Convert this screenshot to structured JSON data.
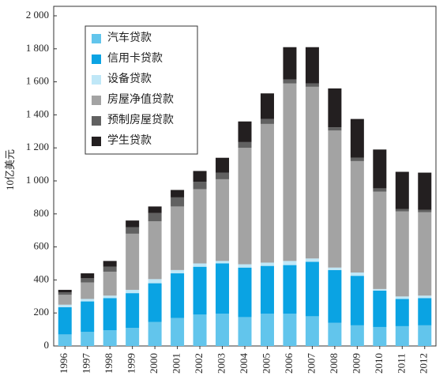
{
  "chart_data": {
    "type": "stacked-bar",
    "y_label": "10亿美元",
    "categories": [
      "1996",
      "1997",
      "1998",
      "1999",
      "2000",
      "2001",
      "2002",
      "2003",
      "2004",
      "2005",
      "2006",
      "2007",
      "2008",
      "2009",
      "2010",
      "2011",
      "2012"
    ],
    "series": [
      {
        "name": "汽车贷款",
        "color": "#62c5ec",
        "values": [
          70,
          85,
          95,
          110,
          145,
          170,
          190,
          195,
          175,
          195,
          195,
          180,
          140,
          125,
          115,
          120,
          125
        ]
      },
      {
        "name": "信用卡贷款",
        "color": "#0aa3e3",
        "values": [
          165,
          185,
          195,
          210,
          235,
          270,
          290,
          305,
          300,
          290,
          295,
          330,
          320,
          300,
          220,
          165,
          165
        ]
      },
      {
        "name": "设备贷款",
        "color": "#bfe7f7",
        "values": [
          15,
          15,
          15,
          20,
          25,
          20,
          20,
          15,
          20,
          20,
          25,
          20,
          15,
          20,
          10,
          15,
          15
        ]
      },
      {
        "name": "房屋净值贷款",
        "color": "#a3a3a3",
        "values": [
          60,
          100,
          145,
          340,
          350,
          385,
          450,
          495,
          705,
          840,
          1075,
          1040,
          830,
          675,
          590,
          515,
          505
        ]
      },
      {
        "name": "预制房屋贷款",
        "color": "#616161",
        "values": [
          15,
          25,
          30,
          40,
          50,
          55,
          45,
          40,
          35,
          30,
          25,
          20,
          20,
          20,
          20,
          15,
          15
        ]
      },
      {
        "name": "学生贷款",
        "color": "#231f20",
        "values": [
          15,
          30,
          35,
          40,
          40,
          45,
          65,
          90,
          125,
          155,
          195,
          220,
          235,
          235,
          235,
          225,
          225
        ]
      }
    ],
    "ylim": [
      0,
      2000
    ],
    "yticks": [
      0,
      200,
      400,
      600,
      800,
      {
        "value": 1000,
        "label": "1 000"
      },
      {
        "value": 1200,
        "label": "1 200"
      },
      {
        "value": 1400,
        "label": "1 400"
      },
      {
        "value": 1600,
        "label": "1 600"
      },
      {
        "value": 1800,
        "label": "1 800"
      },
      {
        "value": 2000,
        "label": "2 000"
      }
    ],
    "legend": "upper-left"
  }
}
